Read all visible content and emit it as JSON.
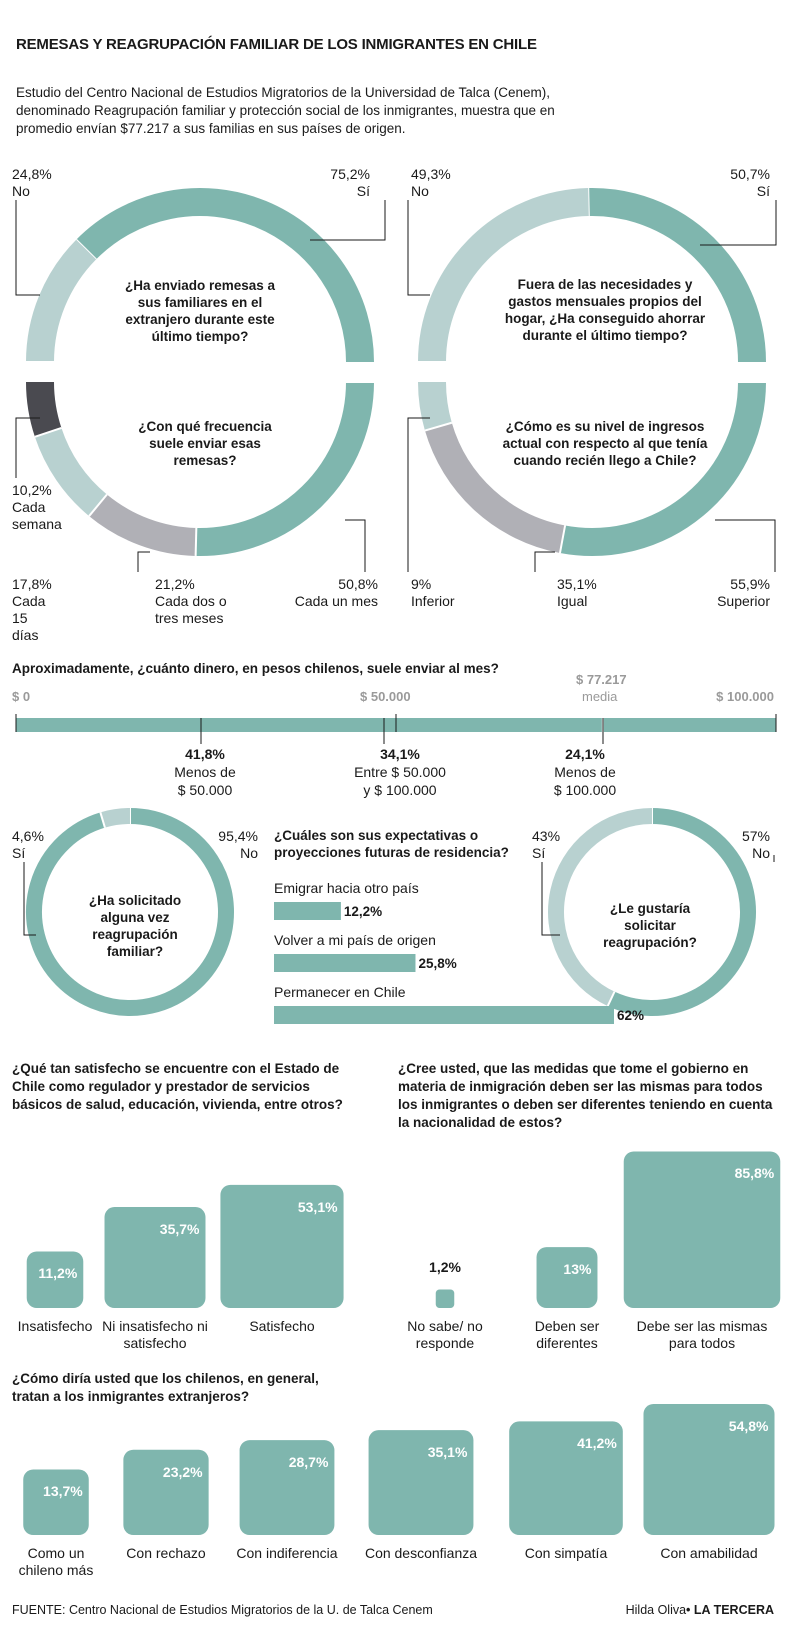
{
  "header": {
    "title": "REMESAS Y REAGRUPACIÓN FAMILIAR DE LOS INMIGRANTES EN CHILE",
    "intro": "Estudio del Centro Nacional de Estudios Migratorios de la Universidad de Talca (Cenem), denominado Reagrupación familiar y protección social de los inmigrantes, muestra que en promedio envían $77.217 a sus familias en sus países de origen."
  },
  "colors": {
    "teal": "#7fb6ae",
    "light": "#b8d1d0",
    "gray": "#b0b0b6",
    "dark": "#4a4a50"
  },
  "chart_data": [
    {
      "id": "remesas",
      "type": "pie",
      "question": "¿Ha enviado remesas a sus familiares en el extranjero durante este último tiempo?",
      "slices": [
        {
          "label": "Sí",
          "value": 75.2,
          "display": "75,2%"
        },
        {
          "label": "No",
          "value": 24.8,
          "display": "24,8%"
        }
      ]
    },
    {
      "id": "ahorro",
      "type": "pie",
      "question": "Fuera de las necesidades y gastos mensuales propios del hogar, ¿Ha conseguido ahorrar durante el último tiempo?",
      "slices": [
        {
          "label": "Sí",
          "value": 50.7,
          "display": "50,7%"
        },
        {
          "label": "No",
          "value": 49.3,
          "display": "49,3%"
        }
      ]
    },
    {
      "id": "frecuencia",
      "type": "pie",
      "question": "¿Con qué frecuencia suele enviar esas remesas?",
      "slices": [
        {
          "label": "Cada un mes",
          "value": 50.8,
          "display": "50,8%"
        },
        {
          "label": "Cada dos o tres meses",
          "value": 21.2,
          "display": "21,2%"
        },
        {
          "label": "Cada 15 días",
          "value": 17.8,
          "display": "17,8%"
        },
        {
          "label": "Cada semana",
          "value": 10.2,
          "display": "10,2%"
        }
      ]
    },
    {
      "id": "ingresos",
      "type": "pie",
      "question": "¿Cómo es su nivel de ingresos actual con respecto al que tenía cuando recién llego a Chile?",
      "slices": [
        {
          "label": "Superior",
          "value": 55.9,
          "display": "55,9%"
        },
        {
          "label": "Igual",
          "value": 35.1,
          "display": "35,1%"
        },
        {
          "label": "Inferior",
          "value": 9,
          "display": "9%"
        }
      ]
    },
    {
      "id": "monto",
      "type": "bar",
      "question": "Aproximadamente, ¿cuánto dinero, en pesos chilenos, suele enviar al mes?",
      "xlim": [
        0,
        100000
      ],
      "ticks": [
        {
          "value": 0,
          "label": "$ 0"
        },
        {
          "value": 50000,
          "label": "$ 50.000"
        },
        {
          "value": 100000,
          "label": "$ 100.000"
        }
      ],
      "mean": {
        "value": 77217,
        "label": "$ 77.217",
        "sublabel": "media"
      },
      "groups": [
        {
          "value": 25000,
          "pct": "41,8%",
          "line1": "Menos de",
          "line2": "$ 50.000"
        },
        {
          "value": 50000,
          "pct": "34,1%",
          "line1": "Entre $ 50.000",
          "line2": "y $ 100.000"
        },
        {
          "value": 75000,
          "pct": "24,1%",
          "line1": "Menos de",
          "line2": "$ 100.000"
        }
      ]
    },
    {
      "id": "solicitado",
      "type": "pie",
      "question": "¿Ha solicitado alguna vez reagrupación familiar?",
      "slices": [
        {
          "label": "No",
          "value": 95.4,
          "display": "95,4%"
        },
        {
          "label": "Sí",
          "value": 4.6,
          "display": "4,6%"
        }
      ]
    },
    {
      "id": "expectativas",
      "type": "bar",
      "question": "¿Cuáles son sus expectativas o proyecciones futuras de residencia?",
      "categories": [
        "Emigrar hacia otro país",
        "Volver a mi país de origen",
        "Permanecer en Chile"
      ],
      "values": [
        12.2,
        25.8,
        62
      ],
      "display": [
        "12,2%",
        "25,8%",
        "62%"
      ]
    },
    {
      "id": "gustaria",
      "type": "pie",
      "question": "¿Le gustaría solicitar reagrupación?",
      "slices": [
        {
          "label": "No",
          "value": 57,
          "display": "57%"
        },
        {
          "label": "Sí",
          "value": 43,
          "display": "43%"
        }
      ]
    },
    {
      "id": "satisfaccion",
      "type": "bar",
      "question": "¿Qué tan satisfecho se encuentre con el Estado de Chile como regulador y prestador de servicios básicos de salud, educación, vivienda, entre otros?",
      "categories": [
        "Insatisfecho",
        "Ni insatisfecho ni satisfecho",
        "Satisfecho"
      ],
      "values": [
        11.2,
        35.7,
        53.1
      ],
      "display": [
        "11,2%",
        "35,7%",
        "53,1%"
      ]
    },
    {
      "id": "medidas",
      "type": "bar",
      "question": "¿Cree usted, que las medidas que tome el gobierno en materia de inmigración deben ser las mismas para todos los inmigrantes o deben ser diferentes teniendo en cuenta la nacionalidad de estos?",
      "categories": [
        "No sabe/ no responde",
        "Deben ser diferentes",
        "Debe ser las mismas para todos"
      ],
      "values": [
        1.2,
        13,
        85.8
      ],
      "display": [
        "1,2%",
        "13%",
        "85,8%"
      ]
    },
    {
      "id": "trato",
      "type": "bar",
      "question": "¿Cómo diría usted que los chilenos, en general, tratan a los inmigrantes extranjeros?",
      "categories": [
        "Como un chileno más",
        "Con rechazo",
        "Con indiferencia",
        "Con desconfianza",
        "Con simpatía",
        "Con amabilidad"
      ],
      "values": [
        13.7,
        23.2,
        28.7,
        35.1,
        41.2,
        54.8
      ],
      "display": [
        "13,7%",
        "23,2%",
        "28,7%",
        "35,1%",
        "41,2%",
        "54,8%"
      ]
    }
  ],
  "footer": {
    "source": "FUENTE: Centro Nacional de Estudios Migratorios de la U. de Talca Cenem",
    "author": "Hilda Oliva",
    "outlet": "LA TERCERA"
  }
}
